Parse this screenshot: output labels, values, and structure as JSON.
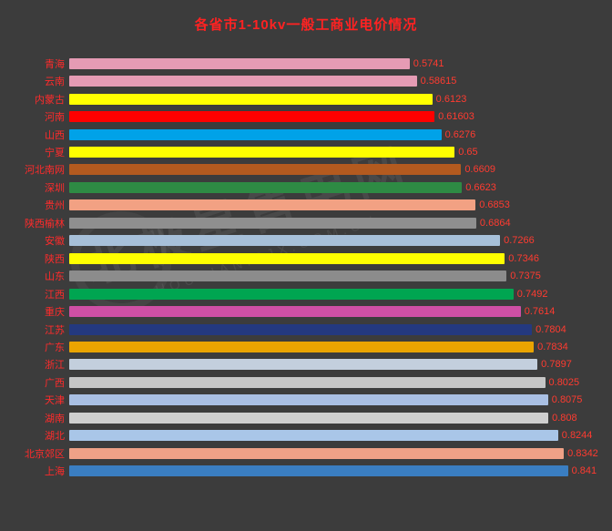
{
  "colors": {
    "background": "#3c3c3c",
    "title_color": "#ff2222",
    "label_color": "#ff2b2b",
    "value_color": "#ff3b30"
  },
  "watermark": {
    "line1": "北极星售电网",
    "line2": "SHOUDIAN.BJX.COM.CN"
  },
  "chart_data": {
    "type": "bar",
    "orientation": "horizontal",
    "title": "各省市1-10kv一般工商业电价情况",
    "xlabel": "",
    "ylabel": "",
    "xlim": [
      0,
      0.9
    ],
    "grid": false,
    "legend": false,
    "categories": [
      "青海",
      "云南",
      "内蒙古",
      "河南",
      "山西",
      "宁夏",
      "河北南网",
      "深圳",
      "贵州",
      "陕西榆林",
      "安徽",
      "陕西",
      "山东",
      "江西",
      "重庆",
      "江苏",
      "广东",
      "浙江",
      "广西",
      "天津",
      "湖南",
      "湖北",
      "北京郊区",
      "上海"
    ],
    "values": [
      0.5741,
      0.58615,
      0.6123,
      0.61603,
      0.6276,
      0.65,
      0.6609,
      0.6623,
      0.6853,
      0.6864,
      0.7266,
      0.7346,
      0.7375,
      0.7492,
      0.7614,
      0.7804,
      0.7834,
      0.7897,
      0.8025,
      0.8075,
      0.808,
      0.8244,
      0.8342,
      0.841
    ],
    "value_labels": [
      "0.5741",
      "0.58615",
      "0.6123",
      "0.61603",
      "0.6276",
      "0.65",
      "0.6609",
      "0.6623",
      "0.6853",
      "0.6864",
      "0.7266",
      "0.7346",
      "0.7375",
      "0.7492",
      "0.7614",
      "0.7804",
      "0.7834",
      "0.7897",
      "0.8025",
      "0.8075",
      "0.808",
      "0.8244",
      "0.8342",
      "0.841"
    ],
    "bar_colors": [
      "#e59bb4",
      "#e59bb4",
      "#ffff00",
      "#ff0000",
      "#00a2e8",
      "#ffff00",
      "#b35a1f",
      "#2e8b44",
      "#f2a183",
      "#8f8f8f",
      "#a7c0d9",
      "#ffff00",
      "#8c8c8c",
      "#00a551",
      "#cf4fa5",
      "#24397f",
      "#eaa400",
      "#c3cfdd",
      "#c6c6c6",
      "#a9bfe3",
      "#cfcfcf",
      "#a9c6e8",
      "#efa187",
      "#3a7ec2"
    ]
  }
}
